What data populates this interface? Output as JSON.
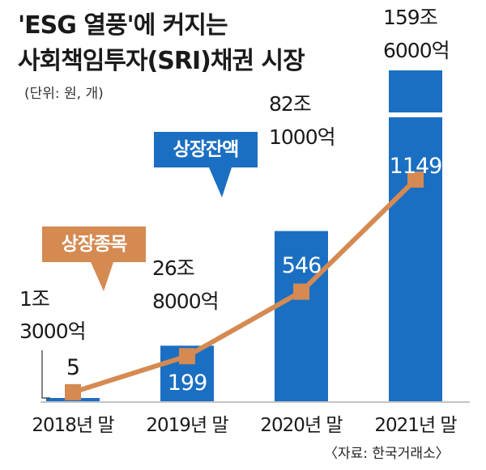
{
  "title_line1": "'ESG 열풍'에 커지는",
  "title_line2": "사회책임투자(SRI)채권 시장",
  "unit": "(단위: 원, 개)",
  "source": "〈자료: 한국거래소〉",
  "legend": {
    "balance": "상장잔액",
    "items": "상장종목"
  },
  "colors": {
    "bar": "#1b6fc2",
    "line": "#d58a52",
    "text": "#1a1a1a"
  },
  "chart_data": {
    "type": "bar",
    "categories": [
      "2018년 말",
      "2019년 말",
      "2020년 말",
      "2021년 말"
    ],
    "series": [
      {
        "name": "상장잔액",
        "type": "bar",
        "values": [
          13000,
          268000,
          821000,
          1596000
        ],
        "unit": "억 원",
        "labels": [
          [
            "1조",
            "3000억"
          ],
          [
            "26조",
            "8000억"
          ],
          [
            "82조",
            "1000억"
          ],
          [
            "159조",
            "6000억"
          ]
        ]
      },
      {
        "name": "상장종목",
        "type": "line",
        "values": [
          5,
          199,
          546,
          1149
        ],
        "unit": "개",
        "labels": [
          "5",
          "199",
          "546",
          "1149"
        ]
      }
    ],
    "annotations": [
      "상장잔액",
      "상장종목"
    ]
  }
}
